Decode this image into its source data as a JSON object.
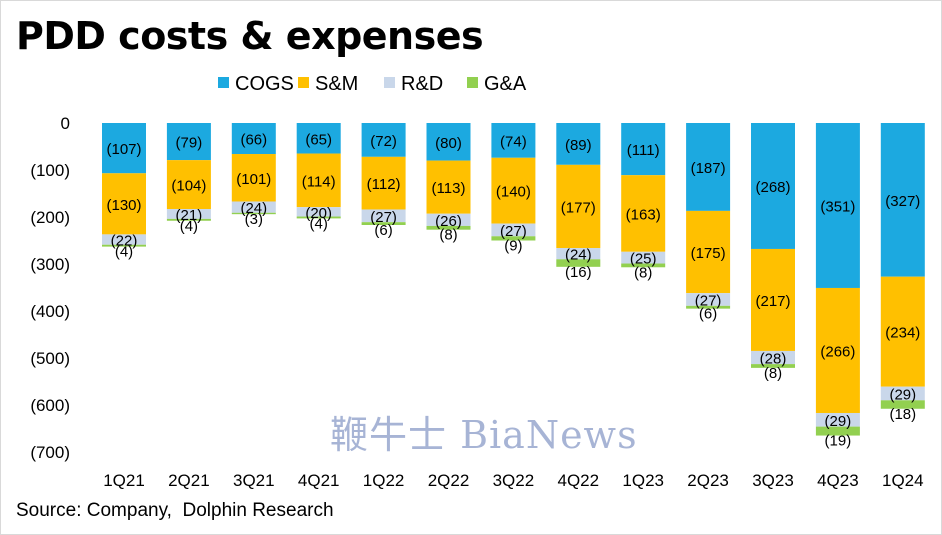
{
  "title": "PDD costs & expenses",
  "source": "Source: Company,  Dolphin Research",
  "watermark_text": "鞭牛士 BiaNews",
  "chart_data": {
    "type": "bar",
    "stacked": true,
    "title": "PDD costs & expenses",
    "categories": [
      "1Q21",
      "2Q21",
      "3Q21",
      "4Q21",
      "1Q22",
      "2Q22",
      "3Q22",
      "4Q22",
      "1Q23",
      "2Q23",
      "3Q23",
      "4Q23",
      "1Q24"
    ],
    "series": [
      {
        "name": "COGS",
        "color": "#1ca9e0",
        "values": [
          -107,
          -79,
          -66,
          -65,
          -72,
          -80,
          -74,
          -89,
          -111,
          -187,
          -268,
          -351,
          -327
        ]
      },
      {
        "name": "S&M",
        "color": "#ffc000",
        "values": [
          -130,
          -104,
          -101,
          -114,
          -112,
          -113,
          -140,
          -177,
          -163,
          -175,
          -217,
          -266,
          -234
        ]
      },
      {
        "name": "R&D",
        "color": "#c9d7ea",
        "values": [
          -22,
          -21,
          -24,
          -20,
          -27,
          -26,
          -27,
          -24,
          -25,
          -27,
          -28,
          -29,
          -29
        ]
      },
      {
        "name": "G&A",
        "color": "#92d050",
        "values": [
          -4,
          -4,
          -3,
          -4,
          -6,
          -8,
          -9,
          -16,
          -8,
          -6,
          -8,
          -19,
          -18
        ]
      }
    ],
    "data_labels": [
      [
        "(107)",
        "(79)",
        "(66)",
        "(65)",
        "(72)",
        "(80)",
        "(74)",
        "(89)",
        "(111)",
        "(187)",
        "(268)",
        "(351)",
        "(327)"
      ],
      [
        "(130)",
        "(104)",
        "(101)",
        "(114)",
        "(112)",
        "(113)",
        "(140)",
        "(177)",
        "(163)",
        "(175)",
        "(217)",
        "(266)",
        "(234)"
      ],
      [
        "(22)",
        "(21)",
        "(24)",
        "(20)",
        "(27)",
        "(26)",
        "(27)",
        "(24)",
        "(25)",
        "(27)",
        "(28)",
        "(29)",
        "(29)"
      ],
      [
        "(4)",
        "(4)",
        "(3)",
        "(4)",
        "(6)",
        "(8)",
        "(9)",
        "(16)",
        "(8)",
        "(6)",
        "(8)",
        "(19)",
        "(18)"
      ]
    ],
    "y_ticks": [
      0,
      -100,
      -200,
      -300,
      -400,
      -500,
      -600,
      -700
    ],
    "y_tick_labels": [
      "0",
      "(100)",
      "(200)",
      "(300)",
      "(400)",
      "(500)",
      "(600)",
      "(700)"
    ],
    "ylim": [
      -700,
      0
    ],
    "legend": "top",
    "grid": false
  }
}
